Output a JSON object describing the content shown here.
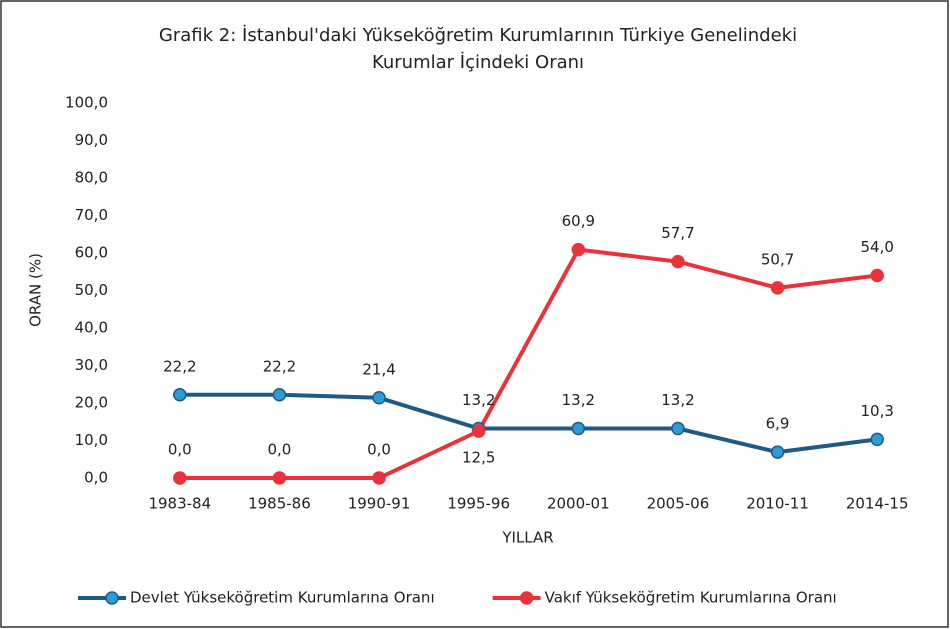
{
  "chart_data": {
    "type": "line",
    "title": [
      "Grafik 2: İstanbul'daki Yükseköğretim Kurumlarının Türkiye Genelindeki",
      "Kurumlar İçindeki Oranı"
    ],
    "x_label": "YILLAR",
    "y_label": "ORAN (%)",
    "categories": [
      "1983-84",
      "1985-86",
      "1990-91",
      "1995-96",
      "2000-01",
      "2005-06",
      "2010-11",
      "2014-15"
    ],
    "series": [
      {
        "name": "Devlet Yükseköğretim Kurumlarına Oranı",
        "color": "#1f5a85",
        "marker_color": "#2e9bd6",
        "values": [
          22.2,
          22.2,
          21.4,
          13.2,
          13.2,
          13.2,
          6.9,
          10.3
        ],
        "value_labels": [
          "22,2",
          "22,2",
          "21,4",
          "13,2",
          "13,2",
          "13,2",
          "6,9",
          "10,3"
        ]
      },
      {
        "name": "Vakıf Yükseköğretim Kurumlarına Oranı",
        "color": "#e8333a",
        "marker_color": "#e8333a",
        "values": [
          0.0,
          0.0,
          0.0,
          12.5,
          60.9,
          57.7,
          50.7,
          54.0
        ],
        "value_labels": [
          "0,0",
          "0,0",
          "0,0",
          "12,5",
          "60,9",
          "57,7",
          "50,7",
          "54,0"
        ]
      }
    ],
    "ylim": [
      0,
      100
    ],
    "yticks": [
      {
        "value": 0,
        "label": "0,0"
      },
      {
        "value": 10,
        "label": "10,0"
      },
      {
        "value": 20,
        "label": "20,0"
      },
      {
        "value": 30,
        "label": "30,0"
      },
      {
        "value": 40,
        "label": "40,0"
      },
      {
        "value": 50,
        "label": "50,0"
      },
      {
        "value": 60,
        "label": "60,0"
      },
      {
        "value": 70,
        "label": "70,0"
      },
      {
        "value": 80,
        "label": "80,0"
      },
      {
        "value": 90,
        "label": "90,0"
      },
      {
        "value": 100,
        "label": "100,0"
      }
    ],
    "grid": false,
    "legend": "bottom"
  }
}
